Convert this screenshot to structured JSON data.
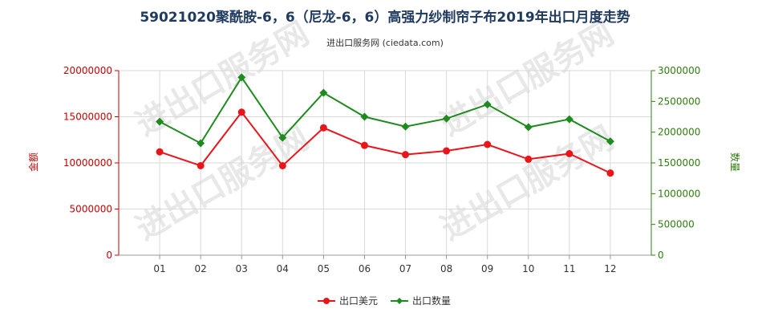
{
  "chart_data": {
    "type": "line",
    "title": "59021020聚酰胺-6，6（尼龙-6，6）高强力纱制帘子布2019年出口月度走势",
    "subtitle": "进出口服务网 (ciedata.com)",
    "categories": [
      "01",
      "02",
      "03",
      "04",
      "05",
      "06",
      "07",
      "08",
      "09",
      "10",
      "11",
      "12"
    ],
    "y_left": {
      "label": "金额",
      "ylim": [
        0,
        20000000
      ],
      "ticks": [
        "0",
        "5000000",
        "10000000",
        "15000000",
        "20000000"
      ],
      "color": "#cc0000"
    },
    "y_right": {
      "label": "数量",
      "ylim": [
        0,
        3000000
      ],
      "ticks": [
        "0",
        "500000",
        "1000000",
        "1500000",
        "2000000",
        "2500000",
        "3000000"
      ],
      "color": "#2e7d0f"
    },
    "series": [
      {
        "name": "出口美元",
        "axis": "left",
        "color": "#e8161b",
        "values": [
          11200000,
          9700000,
          15500000,
          9700000,
          13800000,
          11900000,
          10900000,
          11300000,
          12000000,
          10400000,
          11000000,
          8900000
        ]
      },
      {
        "name": "出口数量",
        "axis": "right",
        "color": "#1e8b1e",
        "values": [
          2170000,
          1820000,
          2890000,
          1910000,
          2640000,
          2250000,
          2090000,
          2220000,
          2450000,
          2080000,
          2210000,
          1850000
        ]
      }
    ],
    "grid": true,
    "legend_position": "bottom-center",
    "watermark": "进出口服务网"
  }
}
